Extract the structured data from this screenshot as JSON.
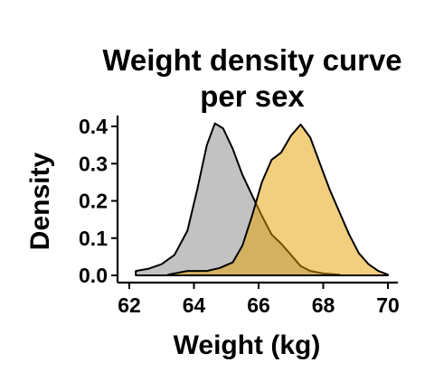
{
  "chart_data": {
    "type": "area",
    "title_lines": [
      "Weight density curve",
      "per sex"
    ],
    "xlabel": "Weight (kg)",
    "ylabel": "Density",
    "xlim": [
      61.8,
      70.3
    ],
    "ylim": [
      0.0,
      0.42
    ],
    "x_ticks": [
      62,
      64,
      66,
      68,
      70
    ],
    "y_ticks": [
      0.0,
      0.1,
      0.2,
      0.3,
      0.4
    ],
    "y_tick_labels": [
      "0.0",
      "0.1",
      "0.2",
      "0.3",
      "0.4"
    ],
    "grid": false,
    "legend": "none",
    "series": [
      {
        "color": "#999999",
        "opacity": 0.6,
        "points": [
          [
            62.2,
            0.012
          ],
          [
            62.6,
            0.018
          ],
          [
            63.0,
            0.03
          ],
          [
            63.4,
            0.055
          ],
          [
            63.8,
            0.12
          ],
          [
            64.1,
            0.23
          ],
          [
            64.4,
            0.35
          ],
          [
            64.65,
            0.408
          ],
          [
            64.9,
            0.395
          ],
          [
            65.2,
            0.34
          ],
          [
            65.5,
            0.27
          ],
          [
            65.8,
            0.215
          ],
          [
            66.1,
            0.16
          ],
          [
            66.4,
            0.11
          ],
          [
            66.7,
            0.085
          ],
          [
            67.0,
            0.055
          ],
          [
            67.3,
            0.025
          ],
          [
            67.6,
            0.012
          ],
          [
            68.0,
            0.005
          ],
          [
            68.5,
            0.002
          ]
        ]
      },
      {
        "color": "#E69F00",
        "opacity": 0.5,
        "points": [
          [
            63.2,
            0.002
          ],
          [
            63.8,
            0.012
          ],
          [
            64.4,
            0.012
          ],
          [
            64.8,
            0.02
          ],
          [
            65.2,
            0.035
          ],
          [
            65.5,
            0.08
          ],
          [
            65.8,
            0.16
          ],
          [
            66.1,
            0.25
          ],
          [
            66.4,
            0.31
          ],
          [
            66.7,
            0.33
          ],
          [
            67.0,
            0.375
          ],
          [
            67.3,
            0.405
          ],
          [
            67.6,
            0.37
          ],
          [
            67.9,
            0.3
          ],
          [
            68.2,
            0.23
          ],
          [
            68.5,
            0.17
          ],
          [
            68.8,
            0.11
          ],
          [
            69.1,
            0.06
          ],
          [
            69.4,
            0.03
          ],
          [
            69.7,
            0.012
          ],
          [
            70.0,
            0.002
          ]
        ]
      }
    ]
  }
}
